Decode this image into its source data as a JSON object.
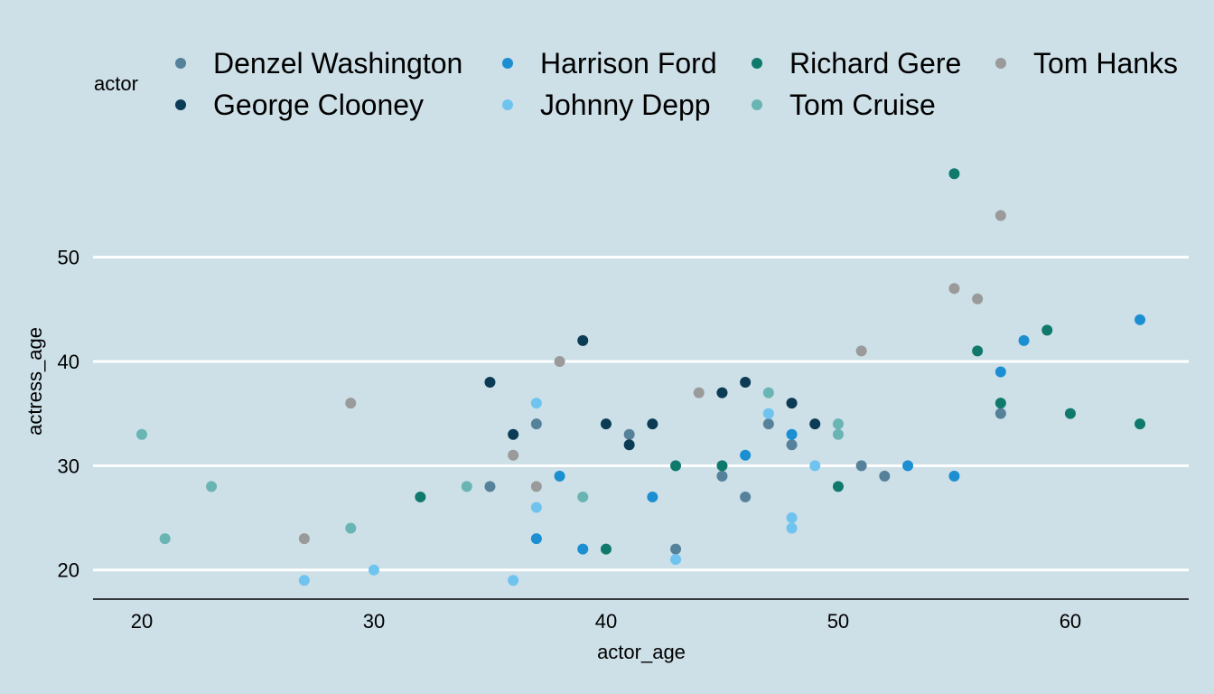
{
  "chart_data": {
    "type": "scatter",
    "xlabel": "actor_age",
    "ylabel": "actress_age",
    "xlim": [
      17.9,
      65.1
    ],
    "ylim": [
      17.2,
      60.8
    ],
    "x_ticks": [
      "20",
      "30",
      "40",
      "50",
      "60"
    ],
    "y_ticks": [
      "20",
      "30",
      "40",
      "50"
    ],
    "grid": "horizontal major lines",
    "legend_position": "top",
    "legend_title": "actor",
    "background_color": "#cddfe7",
    "series": [
      {
        "name": "Denzel Washington",
        "color": "#56819a",
        "points": [
          [
            35,
            28
          ],
          [
            37,
            34
          ],
          [
            41,
            33
          ],
          [
            43,
            22
          ],
          [
            45,
            29
          ],
          [
            46,
            27
          ],
          [
            47,
            34
          ],
          [
            48,
            32
          ],
          [
            51,
            30
          ],
          [
            52,
            29
          ],
          [
            57,
            35
          ]
        ]
      },
      {
        "name": "George Clooney",
        "color": "#0b3b55",
        "points": [
          [
            35,
            38
          ],
          [
            36,
            33
          ],
          [
            39,
            42
          ],
          [
            40,
            34
          ],
          [
            41,
            32
          ],
          [
            42,
            34
          ],
          [
            45,
            37
          ],
          [
            46,
            38
          ],
          [
            48,
            36
          ],
          [
            49,
            34
          ]
        ]
      },
      {
        "name": "Harrison Ford",
        "color": "#1b8fd2",
        "points": [
          [
            37,
            23
          ],
          [
            38,
            29
          ],
          [
            39,
            22
          ],
          [
            42,
            27
          ],
          [
            46,
            31
          ],
          [
            48,
            33
          ],
          [
            53,
            30
          ],
          [
            55,
            29
          ],
          [
            57,
            39
          ],
          [
            58,
            42
          ],
          [
            63,
            44
          ]
        ]
      },
      {
        "name": "Johnny Depp",
        "color": "#6fc4ef",
        "points": [
          [
            27,
            19
          ],
          [
            30,
            20
          ],
          [
            36,
            19
          ],
          [
            37,
            36
          ],
          [
            37,
            26
          ],
          [
            43,
            21
          ],
          [
            47,
            35
          ],
          [
            48,
            25
          ],
          [
            48,
            24
          ],
          [
            49,
            30
          ]
        ]
      },
      {
        "name": "Richard Gere",
        "color": "#0f7a6c",
        "points": [
          [
            32,
            27
          ],
          [
            40,
            22
          ],
          [
            43,
            30
          ],
          [
            45,
            30
          ],
          [
            50,
            28
          ],
          [
            55,
            58
          ],
          [
            56,
            41
          ],
          [
            57,
            36
          ],
          [
            59,
            43
          ],
          [
            60,
            35
          ],
          [
            63,
            34
          ]
        ]
      },
      {
        "name": "Tom Cruise",
        "color": "#68b5b3",
        "points": [
          [
            20,
            33
          ],
          [
            21,
            23
          ],
          [
            23,
            28
          ],
          [
            29,
            24
          ],
          [
            34,
            28
          ],
          [
            39,
            27
          ],
          [
            47,
            37
          ],
          [
            50,
            34
          ],
          [
            50,
            33
          ]
        ]
      },
      {
        "name": "Tom Hanks",
        "color": "#9a9a9a",
        "points": [
          [
            27,
            23
          ],
          [
            29,
            36
          ],
          [
            36,
            31
          ],
          [
            37,
            28
          ],
          [
            38,
            40
          ],
          [
            44,
            37
          ],
          [
            51,
            41
          ],
          [
            55,
            47
          ],
          [
            56,
            46
          ],
          [
            57,
            54
          ]
        ]
      }
    ]
  }
}
